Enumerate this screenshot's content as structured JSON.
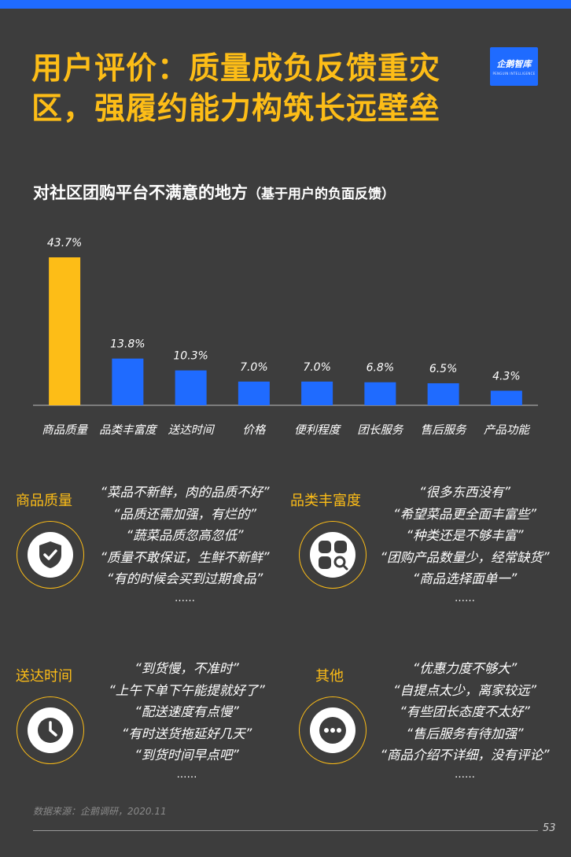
{
  "header": {
    "title_line1": "用户评价：质量成负反馈重灾",
    "title_line2": "区，强履约能力构筑长远壁垒",
    "logo_text": "企鹅智库",
    "logo_sub": "PENGUIN INTELLIGENCE"
  },
  "chart_data": {
    "type": "bar",
    "title": "对社区团购平台不满意的地方",
    "subtitle": "（基于用户的负面反馈）",
    "categories": [
      "商品质量",
      "品类丰富度",
      "送达时间",
      "价格",
      "便利程度",
      "团长服务",
      "售后服务",
      "产品功能"
    ],
    "values": [
      43.7,
      13.8,
      10.3,
      7.0,
      7.0,
      6.8,
      6.5,
      4.3
    ],
    "value_labels": [
      "43.7%",
      "13.8%",
      "10.3%",
      "7.0%",
      "7.0%",
      "6.8%",
      "6.5%",
      "4.3%"
    ],
    "unit": "%",
    "ylim": [
      0,
      43.7
    ],
    "highlight_index": 0,
    "colors": {
      "highlight": "#fdbd17",
      "bar": "#1f6bff",
      "axis": "#bdbdbd"
    },
    "grid": false,
    "legend": "none"
  },
  "categories": [
    {
      "title": "商品质量",
      "icon": "shield-check-icon",
      "quotes": [
        "“菜品不新鲜，肉的品质不好”",
        "“品质还需加强，有烂的”",
        "“蔬菜品质忽高忽低”",
        "“质量不敢保证，生鲜不新鲜”",
        "“有的时候会买到过期食品”"
      ],
      "ellipsis": "……"
    },
    {
      "title": "品类丰富度",
      "icon": "grid-search-icon",
      "quotes": [
        "“很多东西没有”",
        "“希望菜品更全面丰富些”",
        "“种类还是不够丰富”",
        "“团购产品数量少，经常缺货”",
        "“商品选择面单一”"
      ],
      "ellipsis": "……"
    },
    {
      "title": "送达时间",
      "icon": "clock-icon",
      "quotes": [
        "“到货慢，不准时”",
        "“上午下单下午能提就好了”",
        "“配送速度有点慢”",
        "“有时送货拖延好几天”",
        "“到货时间早点吧”"
      ],
      "ellipsis": "……"
    },
    {
      "title": "其他",
      "icon": "more-dots-icon",
      "quotes": [
        "“优惠力度不够大”",
        "“自提点太少，离家较远”",
        "“有些团长态度不太好”",
        "“售后服务有待加强”",
        "“商品介绍不详细，没有评论”"
      ],
      "ellipsis": "……"
    }
  ],
  "footer": {
    "source": "数据来源：企鹅调研，2020.11",
    "page_number": "53"
  },
  "colors": {
    "background": "#3d3d3d",
    "accent_yellow": "#fdbd17",
    "accent_blue": "#1f6bff"
  }
}
